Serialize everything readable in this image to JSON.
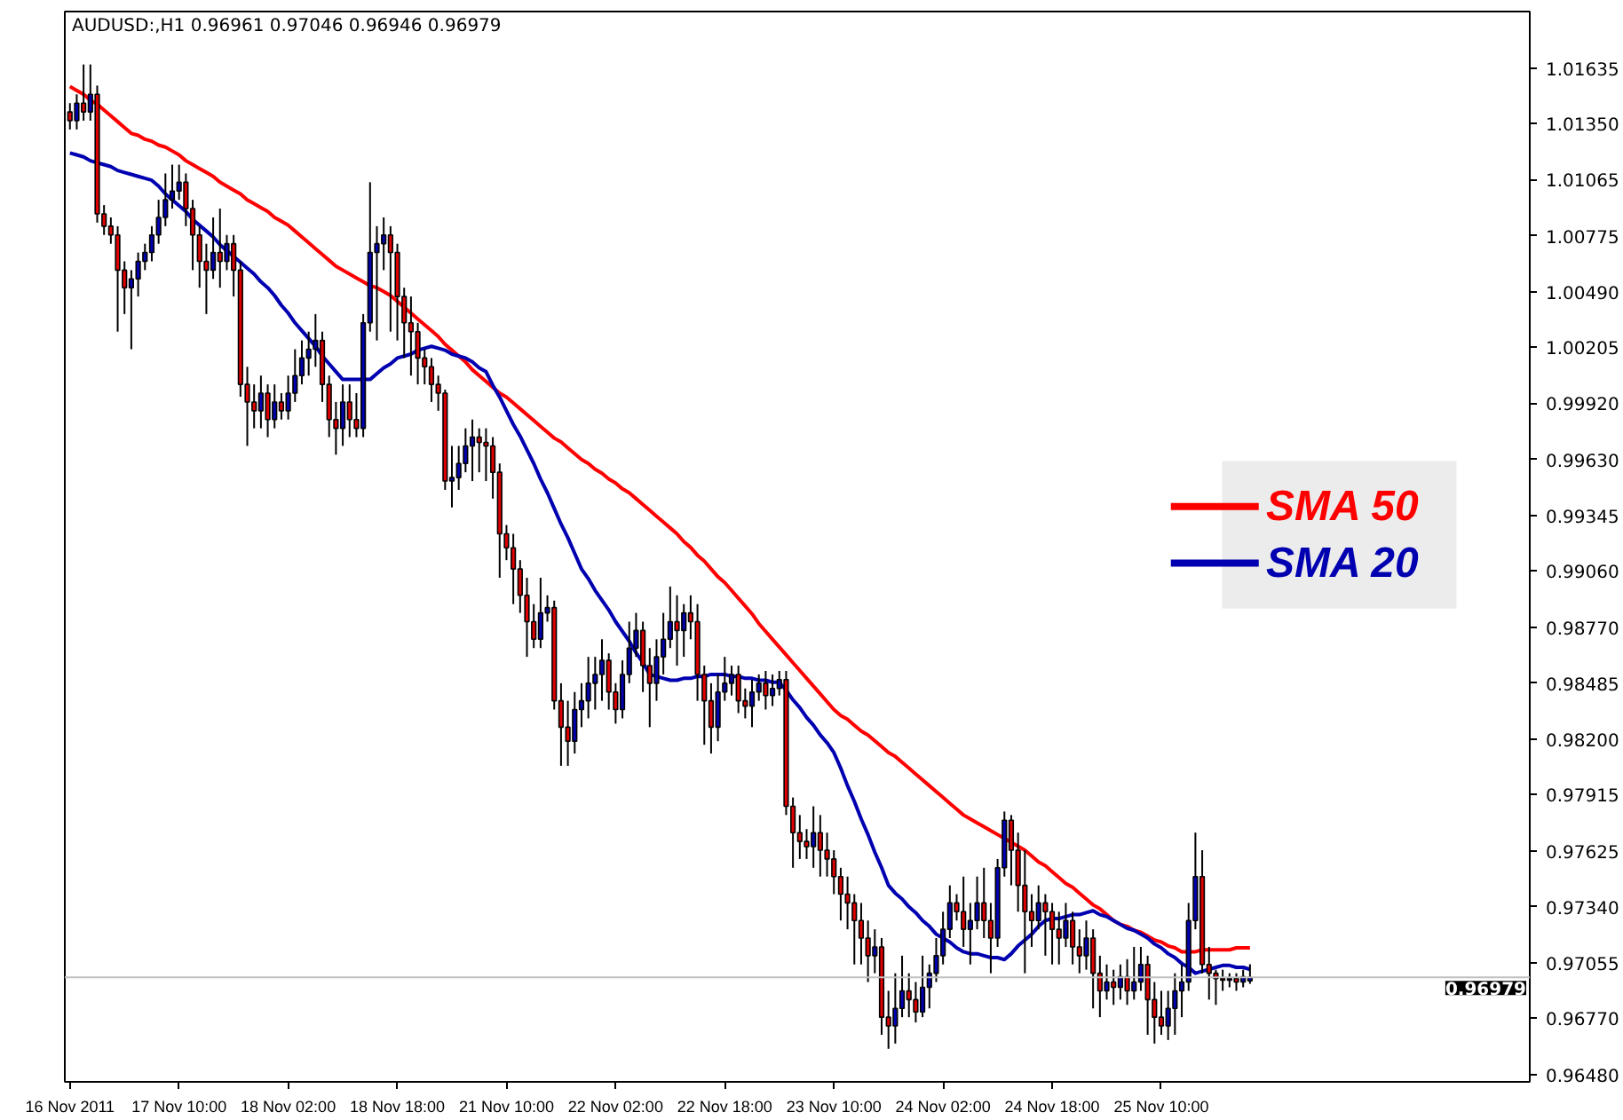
{
  "chart_data": {
    "type": "candlestick",
    "title": "AUDUSD:,H1  0.96961 0.97046 0.96946 0.96979",
    "categories": [
      "16 Nov 2011",
      null,
      null,
      null,
      null,
      null,
      null,
      null,
      null,
      null,
      null,
      null,
      null,
      null,
      null,
      null,
      "17 Nov 10:00",
      null,
      null,
      null,
      null,
      null,
      null,
      null,
      null,
      null,
      null,
      null,
      null,
      null,
      null,
      null,
      "18 Nov 02:00",
      null,
      null,
      null,
      null,
      null,
      null,
      null,
      null,
      null,
      null,
      null,
      null,
      null,
      null,
      null,
      "18 Nov 18:00",
      null,
      null,
      null,
      null,
      null,
      null,
      null,
      null,
      null,
      null,
      null,
      null,
      null,
      null,
      null,
      "21 Nov 10:00",
      null,
      null,
      null,
      null,
      null,
      null,
      null,
      null,
      null,
      null,
      null,
      null,
      null,
      null,
      null,
      "22 Nov 02:00",
      null,
      null,
      null,
      null,
      null,
      null,
      null,
      null,
      null,
      null,
      null,
      null,
      null,
      null,
      null,
      "22 Nov 18:00",
      null,
      null,
      null,
      null,
      null,
      null,
      null,
      null,
      null,
      null,
      null,
      null,
      null,
      null,
      null,
      "23 Nov 10:00",
      null,
      null,
      null,
      null,
      null,
      null,
      null,
      null,
      null,
      null,
      null,
      null,
      null,
      null,
      null,
      "24 Nov 02:00",
      null,
      null,
      null,
      null,
      null,
      null,
      null,
      null,
      null,
      null,
      null,
      null,
      null,
      null,
      null,
      "24 Nov 18:00",
      null,
      null,
      null,
      null,
      null,
      null,
      null,
      null,
      null,
      null,
      null,
      null,
      null,
      null,
      null,
      "25 Nov 10:00",
      null,
      null,
      null,
      null,
      null,
      null,
      null,
      null,
      null,
      null,
      null,
      null,
      null
    ],
    "ohlc": [
      [
        1.0141,
        1.01455,
        1.0132,
        1.01365
      ],
      [
        1.01365,
        1.015,
        1.0132,
        1.01455
      ],
      [
        1.01455,
        1.01653,
        1.01365,
        1.0141
      ],
      [
        1.0141,
        1.01653,
        1.01365,
        1.015
      ],
      [
        1.015,
        1.01545,
        1.00843,
        1.00888
      ],
      [
        1.00888,
        1.00933,
        1.0078,
        1.00825
      ],
      [
        1.00825,
        1.0087,
        1.00735,
        1.0078
      ],
      [
        1.0078,
        1.00825,
        1.00285,
        1.006
      ],
      [
        1.006,
        1.00645,
        1.00375,
        1.0051
      ],
      [
        1.0051,
        1.006,
        1.00195,
        1.00555
      ],
      [
        1.00555,
        1.0069,
        1.00465,
        1.00645
      ],
      [
        1.00645,
        1.00735,
        1.006,
        1.0069
      ],
      [
        1.0069,
        1.00825,
        1.00645,
        1.0078
      ],
      [
        1.0078,
        1.0096,
        1.00735,
        1.0087
      ],
      [
        1.0087,
        1.01095,
        1.00825,
        1.0096
      ],
      [
        1.0096,
        1.0114,
        1.00915,
        1.01005
      ],
      [
        1.01005,
        1.0114,
        1.0096,
        1.0105
      ],
      [
        1.0105,
        1.01095,
        1.00825,
        1.00915
      ],
      [
        1.00915,
        1.0096,
        1.006,
        1.0078
      ],
      [
        1.0078,
        1.00825,
        1.0051,
        1.00645
      ],
      [
        1.00645,
        1.00735,
        1.00375,
        1.006
      ],
      [
        1.006,
        1.0087,
        1.00555,
        1.0069
      ],
      [
        1.0069,
        1.00915,
        1.0051,
        1.00645
      ],
      [
        1.00645,
        1.0078,
        1.006,
        1.00735
      ],
      [
        1.00735,
        1.0078,
        1.00465,
        1.006
      ],
      [
        1.006,
        1.00645,
        0.99952,
        1.00015
      ],
      [
        1.00015,
        1.00105,
        0.997,
        0.99925
      ],
      [
        0.99925,
        1.00015,
        0.9979,
        0.9988
      ],
      [
        0.9988,
        1.0006,
        0.9979,
        0.9997
      ],
      [
        0.9997,
        1.00015,
        0.99745,
        0.99835
      ],
      [
        0.99835,
        1.00015,
        0.9979,
        0.99925
      ],
      [
        0.99925,
        0.9997,
        0.99835,
        0.9988
      ],
      [
        0.9988,
        1.0006,
        0.99835,
        0.9997
      ],
      [
        0.9997,
        1.00195,
        0.99925,
        1.0006
      ],
      [
        1.0006,
        1.0024,
        1.00015,
        1.0015
      ],
      [
        1.0015,
        1.00285,
        1.0006,
        1.00195
      ],
      [
        1.00195,
        1.00375,
        1.00105,
        1.0024
      ],
      [
        1.0024,
        1.00285,
        0.99925,
        1.00015
      ],
      [
        1.00015,
        1.0006,
        0.99745,
        0.99835
      ],
      [
        0.99835,
        0.99925,
        0.99655,
        0.9979
      ],
      [
        0.9979,
        1.00015,
        0.997,
        0.99925
      ],
      [
        0.99925,
        1.00015,
        0.99745,
        0.99835
      ],
      [
        0.99835,
        0.9997,
        0.99745,
        0.9979
      ],
      [
        0.9979,
        1.00375,
        0.99745,
        1.0033
      ],
      [
        1.0033,
        1.0105,
        1.00285,
        1.0069
      ],
      [
        1.0069,
        1.00825,
        1.0024,
        1.00735
      ],
      [
        1.00735,
        1.0087,
        1.006,
        1.0078
      ],
      [
        1.0078,
        1.00825,
        1.00285,
        1.0069
      ],
      [
        1.0069,
        1.00735,
        1.0024,
        1.00465
      ],
      [
        1.00465,
        1.0051,
        1.0015,
        1.0033
      ],
      [
        1.0033,
        1.00465,
        1.0006,
        1.00285
      ],
      [
        1.00285,
        1.0033,
        1.00015,
        1.0015
      ],
      [
        1.0015,
        1.00195,
        1.00015,
        1.00105
      ],
      [
        1.00105,
        1.0015,
        0.99925,
        1.00015
      ],
      [
        1.00015,
        1.0006,
        0.9988,
        0.9997
      ],
      [
        0.9997,
        0.99988,
        0.99475,
        0.9952
      ],
      [
        0.9952,
        0.997,
        0.99385,
        0.99538
      ],
      [
        0.99538,
        0.997,
        0.99475,
        0.9961
      ],
      [
        0.9961,
        0.9979,
        0.99565,
        0.997
      ],
      [
        0.997,
        0.99835,
        0.9952,
        0.99745
      ],
      [
        0.99745,
        0.9979,
        0.99565,
        0.99718
      ],
      [
        0.99718,
        0.9979,
        0.9952,
        0.997
      ],
      [
        0.997,
        0.99745,
        0.9943,
        0.99565
      ],
      [
        0.99565,
        0.9961,
        0.99025,
        0.9925
      ],
      [
        0.9925,
        0.99295,
        0.99115,
        0.99178
      ],
      [
        0.99178,
        0.9925,
        0.9889,
        0.9907
      ],
      [
        0.9907,
        0.99115,
        0.98845,
        0.98935
      ],
      [
        0.98935,
        0.99025,
        0.9862,
        0.988
      ],
      [
        0.988,
        0.9889,
        0.98665,
        0.9871
      ],
      [
        0.9871,
        0.99025,
        0.98665,
        0.98845
      ],
      [
        0.98845,
        0.98935,
        0.988,
        0.98872
      ],
      [
        0.98872,
        0.98908,
        0.9835,
        0.98395
      ],
      [
        0.98395,
        0.98485,
        0.98062,
        0.9826
      ],
      [
        0.9826,
        0.98395,
        0.98062,
        0.98188
      ],
      [
        0.98188,
        0.9844,
        0.98125,
        0.9835
      ],
      [
        0.9835,
        0.98485,
        0.9826,
        0.98395
      ],
      [
        0.98395,
        0.9862,
        0.98305,
        0.98485
      ],
      [
        0.98485,
        0.9862,
        0.9835,
        0.9853
      ],
      [
        0.9853,
        0.9871,
        0.98395,
        0.98602
      ],
      [
        0.98602,
        0.98638,
        0.9835,
        0.9844
      ],
      [
        0.9844,
        0.98485,
        0.98278,
        0.9835
      ],
      [
        0.9835,
        0.98602,
        0.98305,
        0.9853
      ],
      [
        0.9853,
        0.988,
        0.98485,
        0.98665
      ],
      [
        0.98665,
        0.98845,
        0.9862,
        0.98755
      ],
      [
        0.98755,
        0.988,
        0.9844,
        0.98575
      ],
      [
        0.98575,
        0.98665,
        0.9826,
        0.98485
      ],
      [
        0.98485,
        0.9871,
        0.98395,
        0.9862
      ],
      [
        0.9862,
        0.98845,
        0.9853,
        0.9871
      ],
      [
        0.9871,
        0.9898,
        0.98665,
        0.988
      ],
      [
        0.988,
        0.98935,
        0.98575,
        0.98755
      ],
      [
        0.98755,
        0.9889,
        0.9862,
        0.98845
      ],
      [
        0.98845,
        0.98935,
        0.9871,
        0.988
      ],
      [
        0.988,
        0.9889,
        0.98395,
        0.9853
      ],
      [
        0.9853,
        0.98575,
        0.9817,
        0.98395
      ],
      [
        0.98395,
        0.98485,
        0.98125,
        0.9826
      ],
      [
        0.9826,
        0.9853,
        0.98188,
        0.9844
      ],
      [
        0.9844,
        0.9862,
        0.98395,
        0.98485
      ],
      [
        0.98485,
        0.98575,
        0.98422,
        0.9853
      ],
      [
        0.9853,
        0.98575,
        0.98332,
        0.98395
      ],
      [
        0.98395,
        0.98458,
        0.98305,
        0.98368
      ],
      [
        0.98368,
        0.98503,
        0.9826,
        0.9844
      ],
      [
        0.9844,
        0.9853,
        0.98395,
        0.98485
      ],
      [
        0.98485,
        0.98548,
        0.9835,
        0.98422
      ],
      [
        0.98422,
        0.9853,
        0.98368,
        0.98458
      ],
      [
        0.98458,
        0.98548,
        0.98422,
        0.98503
      ],
      [
        0.98503,
        0.98548,
        0.9781,
        0.97855
      ],
      [
        0.97855,
        0.979,
        0.9754,
        0.9772
      ],
      [
        0.9772,
        0.9781,
        0.97585,
        0.97675
      ],
      [
        0.97675,
        0.97738,
        0.97585,
        0.97648
      ],
      [
        0.97648,
        0.97855,
        0.9754,
        0.9772
      ],
      [
        0.9772,
        0.9781,
        0.97495,
        0.9763
      ],
      [
        0.9763,
        0.9772,
        0.97495,
        0.97585
      ],
      [
        0.97585,
        0.9763,
        0.97405,
        0.97495
      ],
      [
        0.97495,
        0.9754,
        0.9727,
        0.97405
      ],
      [
        0.97405,
        0.97495,
        0.97225,
        0.9736
      ],
      [
        0.9736,
        0.97405,
        0.97045,
        0.9727
      ],
      [
        0.9727,
        0.9736,
        0.97045,
        0.9718
      ],
      [
        0.9718,
        0.9727,
        0.96955,
        0.9709
      ],
      [
        0.9709,
        0.97225,
        0.97,
        0.97135
      ],
      [
        0.97135,
        0.9718,
        0.96685,
        0.96775
      ],
      [
        0.96775,
        0.9691,
        0.96613,
        0.9673
      ],
      [
        0.9673,
        0.97,
        0.9664,
        0.9682
      ],
      [
        0.9682,
        0.9709,
        0.96775,
        0.9691
      ],
      [
        0.9691,
        0.97,
        0.96775,
        0.96865
      ],
      [
        0.96865,
        0.96955,
        0.96748,
        0.96802
      ],
      [
        0.96802,
        0.9709,
        0.96775,
        0.96928
      ],
      [
        0.96928,
        0.97045,
        0.9682,
        0.97
      ],
      [
        0.97,
        0.9718,
        0.96955,
        0.9709
      ],
      [
        0.9709,
        0.97315,
        0.97045,
        0.97225
      ],
      [
        0.97225,
        0.9745,
        0.9718,
        0.9736
      ],
      [
        0.9736,
        0.97405,
        0.9727,
        0.97315
      ],
      [
        0.97315,
        0.97495,
        0.97135,
        0.97225
      ],
      [
        0.97225,
        0.9736,
        0.97045,
        0.9727
      ],
      [
        0.9727,
        0.97495,
        0.97225,
        0.9736
      ],
      [
        0.9736,
        0.9754,
        0.9718,
        0.9727
      ],
      [
        0.9727,
        0.9736,
        0.97,
        0.9718
      ],
      [
        0.9718,
        0.97585,
        0.97135,
        0.9754
      ],
      [
        0.9754,
        0.97828,
        0.97495,
        0.97783
      ],
      [
        0.97783,
        0.9781,
        0.9745,
        0.9763
      ],
      [
        0.9763,
        0.9772,
        0.97315,
        0.9745
      ],
      [
        0.9745,
        0.9763,
        0.97,
        0.97315
      ],
      [
        0.97315,
        0.97405,
        0.97135,
        0.9727
      ],
      [
        0.9727,
        0.9745,
        0.97225,
        0.9736
      ],
      [
        0.9736,
        0.97405,
        0.9709,
        0.97315
      ],
      [
        0.97315,
        0.9736,
        0.97045,
        0.97225
      ],
      [
        0.97225,
        0.97315,
        0.97045,
        0.9718
      ],
      [
        0.9718,
        0.9736,
        0.97135,
        0.9727
      ],
      [
        0.9727,
        0.97315,
        0.97045,
        0.97135
      ],
      [
        0.97135,
        0.97225,
        0.97,
        0.9709
      ],
      [
        0.9709,
        0.9727,
        0.97018,
        0.9718
      ],
      [
        0.9718,
        0.97225,
        0.9682,
        0.97
      ],
      [
        0.97,
        0.9709,
        0.96775,
        0.9691
      ],
      [
        0.9691,
        0.97045,
        0.96865,
        0.96955
      ],
      [
        0.96955,
        0.97018,
        0.96838,
        0.96928
      ],
      [
        0.96928,
        0.97045,
        0.96865,
        0.96982
      ],
      [
        0.96982,
        0.97072,
        0.96838,
        0.9691
      ],
      [
        0.9691,
        0.97135,
        0.96865,
        0.96955
      ],
      [
        0.96955,
        0.97135,
        0.9691,
        0.97045
      ],
      [
        0.97045,
        0.9709,
        0.96685,
        0.96865
      ],
      [
        0.96865,
        0.96955,
        0.9664,
        0.96775
      ],
      [
        0.96775,
        0.9691,
        0.96685,
        0.9673
      ],
      [
        0.9673,
        0.9691,
        0.96658,
        0.9682
      ],
      [
        0.9682,
        0.97,
        0.96685,
        0.9691
      ],
      [
        0.9691,
        0.97045,
        0.96775,
        0.96955
      ],
      [
        0.96955,
        0.9736,
        0.9691,
        0.9727
      ],
      [
        0.9727,
        0.9772,
        0.97225,
        0.97495
      ],
      [
        0.97495,
        0.9763,
        0.97,
        0.97045
      ],
      [
        0.97045,
        0.97135,
        0.96865,
        0.97
      ],
      [
        0.97,
        0.97018,
        0.96838,
        0.96973
      ],
      [
        0.96973,
        0.97018,
        0.9691,
        0.96964
      ],
      [
        0.96964,
        0.97,
        0.96928,
        0.96973
      ],
      [
        0.96973,
        0.97,
        0.9691,
        0.96955
      ],
      [
        0.96955,
        0.97018,
        0.96928,
        0.96982
      ],
      [
        0.96961,
        0.97046,
        0.96946,
        0.96979
      ]
    ],
    "series": [
      {
        "name": "SMA 50",
        "type": "line",
        "color": "#ff0000",
        "values": [
          1.0154,
          1.0152,
          1.015,
          1.0147,
          1.0145,
          1.0142,
          1.0139,
          1.0136,
          1.0133,
          1.013,
          1.0129,
          1.0127,
          1.0126,
          1.0124,
          1.0123,
          1.0121,
          1.0119,
          1.0116,
          1.0114,
          1.0112,
          1.011,
          1.0108,
          1.0105,
          1.0103,
          1.0101,
          1.0099,
          1.0096,
          1.0094,
          1.0092,
          1.009,
          1.0087,
          1.0085,
          1.0083,
          1.008,
          1.0077,
          1.0074,
          1.0071,
          1.0068,
          1.0065,
          1.0062,
          1.006,
          1.0058,
          1.0056,
          1.0054,
          1.0052,
          1.0051,
          1.0049,
          1.0047,
          1.0044,
          1.0041,
          1.0038,
          1.0035,
          1.0032,
          1.0029,
          1.0026,
          1.0022,
          1.0019,
          1.0016,
          1.0013,
          1.0009,
          1.0006,
          1.0003,
          1.0,
          0.9997,
          0.9995,
          0.9992,
          0.9989,
          0.9986,
          0.9983,
          0.998,
          0.9977,
          0.9974,
          0.9972,
          0.9969,
          0.9966,
          0.9963,
          0.9961,
          0.9958,
          0.9956,
          0.9953,
          0.9951,
          0.9948,
          0.9946,
          0.9943,
          0.994,
          0.9937,
          0.9934,
          0.9931,
          0.9928,
          0.9925,
          0.9921,
          0.9918,
          0.9914,
          0.9911,
          0.9907,
          0.9903,
          0.99,
          0.9896,
          0.9892,
          0.9888,
          0.9884,
          0.9879,
          0.9875,
          0.9871,
          0.9867,
          0.9863,
          0.9859,
          0.9855,
          0.9851,
          0.9847,
          0.9843,
          0.9839,
          0.9835,
          0.9832,
          0.983,
          0.9827,
          0.9824,
          0.9822,
          0.9819,
          0.9816,
          0.9813,
          0.9811,
          0.9808,
          0.9805,
          0.9802,
          0.9799,
          0.9796,
          0.9793,
          0.979,
          0.9787,
          0.9784,
          0.9781,
          0.9779,
          0.9777,
          0.9775,
          0.9773,
          0.9771,
          0.9769,
          0.9767,
          0.9765,
          0.9763,
          0.976,
          0.9757,
          0.9755,
          0.9752,
          0.9749,
          0.9746,
          0.9744,
          0.9741,
          0.9738,
          0.9735,
          0.9733,
          0.973,
          0.9727,
          0.9725,
          0.9724,
          0.9722,
          0.9721,
          0.9719,
          0.9717,
          0.9716,
          0.9714,
          0.9713,
          0.9711,
          0.9711,
          0.9711,
          0.9712,
          0.9712,
          0.9712,
          0.9712,
          0.9712,
          0.9713,
          0.9713,
          0.9713
        ]
      },
      {
        "name": "SMA 20",
        "type": "line",
        "color": "#0000b0",
        "values": [
          1.012,
          1.0119,
          1.0118,
          1.0116,
          1.0115,
          1.0114,
          1.0113,
          1.0111,
          1.011,
          1.0109,
          1.0108,
          1.0107,
          1.0106,
          1.0103,
          1.0099,
          1.0096,
          1.0093,
          1.009,
          1.0086,
          1.0083,
          1.008,
          1.0077,
          1.0073,
          1.007,
          1.0067,
          1.0064,
          1.0061,
          1.0058,
          1.0054,
          1.0051,
          1.0047,
          1.0042,
          1.0038,
          1.0033,
          1.0029,
          1.0025,
          1.0021,
          1.0016,
          1.0012,
          1.0008,
          1.0004,
          1.0004,
          1.0004,
          1.0004,
          1.0004,
          1.0007,
          1.001,
          1.0012,
          1.0015,
          1.0016,
          1.0017,
          1.0019,
          1.002,
          1.0021,
          1.002,
          1.0019,
          1.0017,
          1.0016,
          1.0015,
          1.0013,
          1.001,
          1.0008,
          1.0001,
          0.9995,
          0.9988,
          0.9981,
          0.9975,
          0.9968,
          0.9961,
          0.9953,
          0.9946,
          0.9938,
          0.993,
          0.9923,
          0.9915,
          0.9907,
          0.9902,
          0.9896,
          0.9891,
          0.9886,
          0.988,
          0.9875,
          0.987,
          0.9864,
          0.9859,
          0.9853,
          0.9852,
          0.9851,
          0.985,
          0.985,
          0.9851,
          0.9851,
          0.9852,
          0.9852,
          0.9853,
          0.9853,
          0.9853,
          0.9852,
          0.9852,
          0.9851,
          0.9851,
          0.985,
          0.985,
          0.9849,
          0.9849,
          0.9845,
          0.984,
          0.9836,
          0.9831,
          0.9827,
          0.9822,
          0.9818,
          0.9813,
          0.9805,
          0.9796,
          0.9788,
          0.9779,
          0.9771,
          0.9762,
          0.9754,
          0.9745,
          0.9741,
          0.9738,
          0.9734,
          0.9731,
          0.9727,
          0.9724,
          0.972,
          0.9718,
          0.9716,
          0.9713,
          0.9711,
          0.971,
          0.971,
          0.9709,
          0.9708,
          0.9708,
          0.9707,
          0.971,
          0.9714,
          0.9717,
          0.972,
          0.9724,
          0.9727,
          0.9728,
          0.9728,
          0.9729,
          0.973,
          0.973,
          0.9731,
          0.9732,
          0.973,
          0.9729,
          0.9727,
          0.9725,
          0.9723,
          0.9722,
          0.972,
          0.9718,
          0.9715,
          0.9713,
          0.971,
          0.9708,
          0.9705,
          0.9703,
          0.97,
          0.9701,
          0.9702,
          0.9703,
          0.9704,
          0.9704,
          0.9703,
          0.9703,
          0.9702
        ]
      }
    ],
    "ylim": [
      0.96444,
      1.01924
    ],
    "yticks": [
      {
        "value": 1.01635,
        "label": "1.01635"
      },
      {
        "value": 1.0135,
        "label": "1.01350"
      },
      {
        "value": 1.01065,
        "label": "1.01065"
      },
      {
        "value": 1.00775,
        "label": "1.00775"
      },
      {
        "value": 1.0049,
        "label": "1.00490"
      },
      {
        "value": 1.00205,
        "label": "1.00205"
      },
      {
        "value": 0.9992,
        "label": "0.99920"
      },
      {
        "value": 0.9963,
        "label": "0.99630"
      },
      {
        "value": 0.99345,
        "label": "0.99345"
      },
      {
        "value": 0.9906,
        "label": "0.99060"
      },
      {
        "value": 0.9877,
        "label": "0.98770"
      },
      {
        "value": 0.98485,
        "label": "0.98485"
      },
      {
        "value": 0.982,
        "label": "0.98200"
      },
      {
        "value": 0.97915,
        "label": "0.97915"
      },
      {
        "value": 0.97625,
        "label": "0.97625"
      },
      {
        "value": 0.9734,
        "label": "0.97340"
      },
      {
        "value": 0.97055,
        "label": "0.97055"
      },
      {
        "value": 0.9677,
        "label": "0.96770"
      },
      {
        "value": 0.9648,
        "label": "0.96480"
      }
    ],
    "ref_lines": [
      {
        "axis": "y",
        "value": 0.96979,
        "label": "0.96979",
        "color": "#c0c0c0"
      }
    ],
    "legend": "right",
    "grid": false
  }
}
